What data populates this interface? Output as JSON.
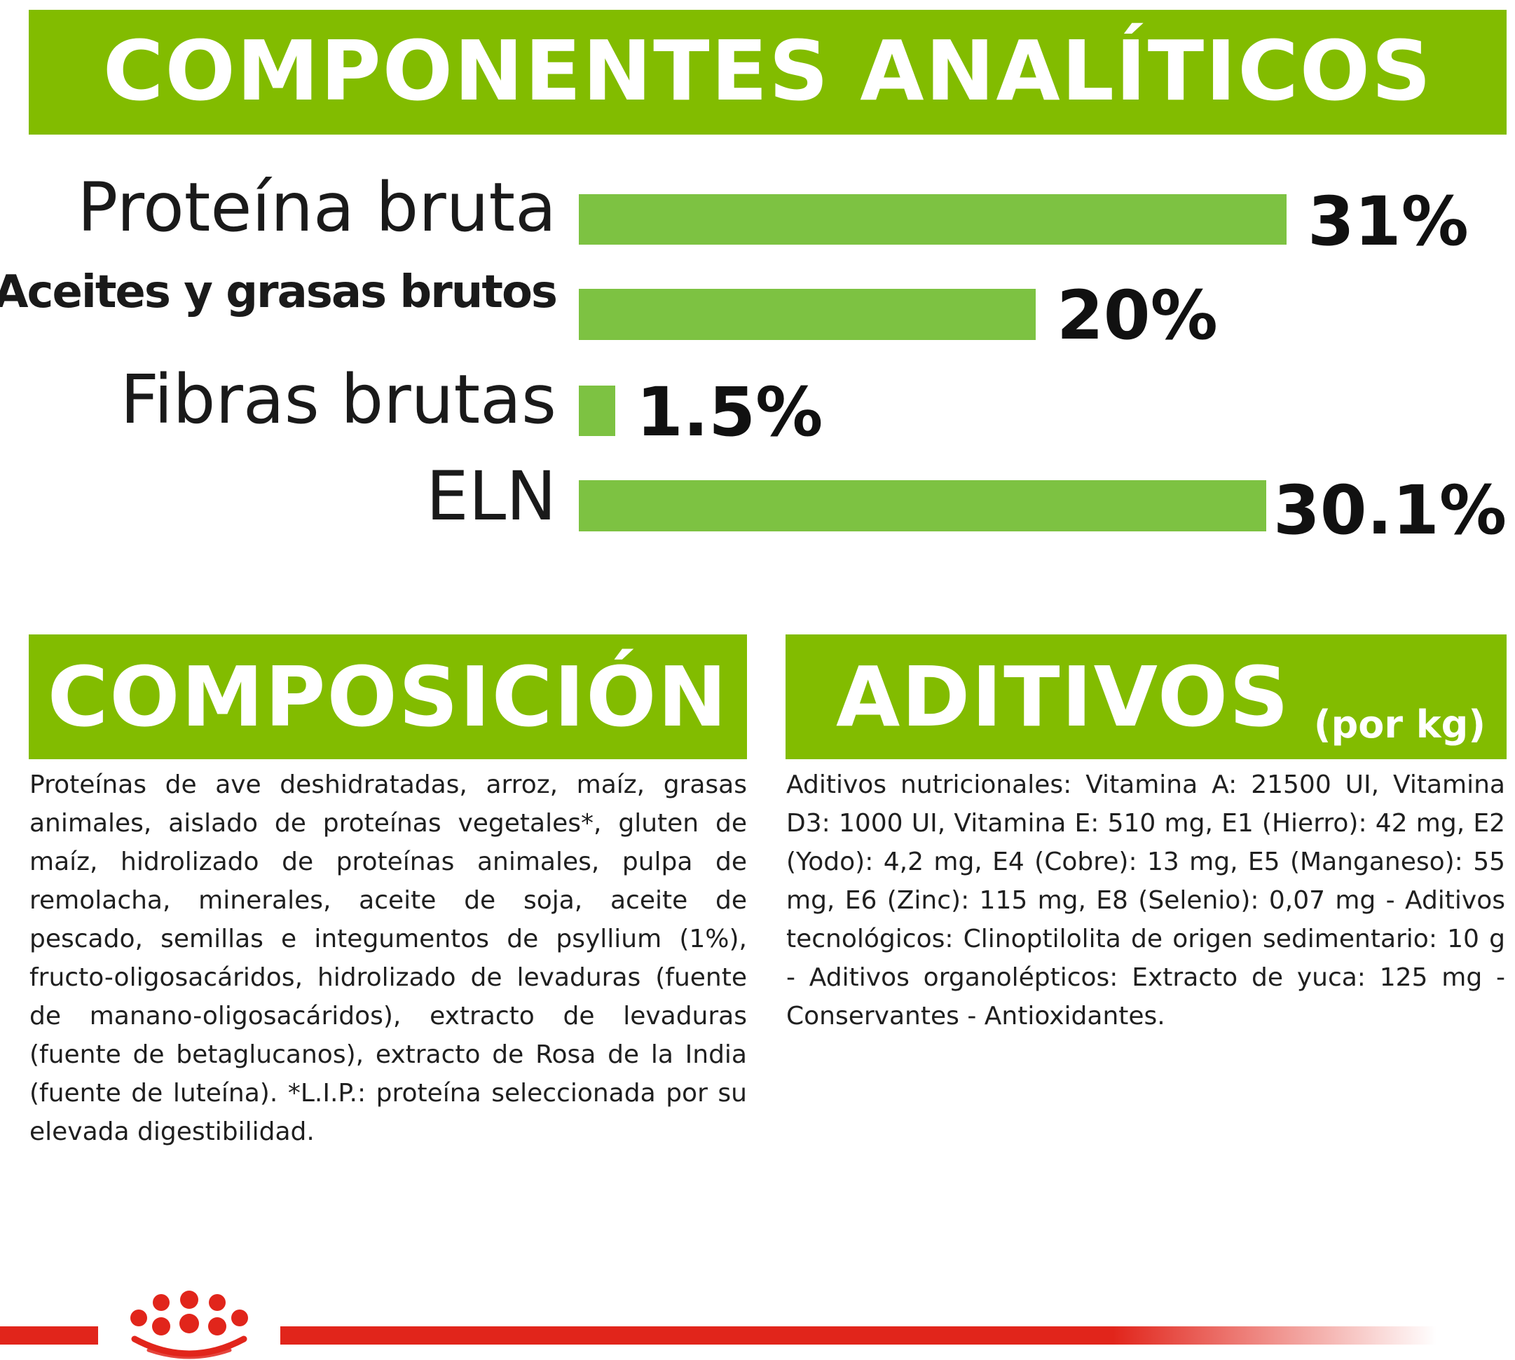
{
  "header": {
    "title": "COMPONENTES ANALÍTICOS"
  },
  "analytic": {
    "max_value": 31,
    "items": [
      {
        "label": "Proteína bruta",
        "value": 31,
        "value_label": "31%"
      },
      {
        "label": "Aceites y grasas brutos",
        "value": 20,
        "value_label": "20%"
      },
      {
        "label": "Fibras brutas",
        "value": 1.5,
        "value_label": "1.5%"
      },
      {
        "label": "ELN",
        "value": 30.1,
        "value_label": "30.1%"
      }
    ]
  },
  "composicion": {
    "title": "COMPOSICIÓN",
    "text": "Proteínas de ave deshidratadas, arroz, maíz, grasas animales, aislado de proteínas vegetales*, gluten de maíz, hidrolizado de proteínas animales, pulpa de remolacha, minerales, aceite de soja, aceite de pescado, semillas e integumentos de psyllium (1%), fructo-oligosacáridos, hidrolizado de levaduras (fuente de manano-oligosacáridos), extracto de levaduras (fuente de betaglucanos), extracto de Rosa de la India (fuente de luteína). *L.I.P.: proteína seleccionada por su elevada digestibilidad."
  },
  "aditivos": {
    "title": "ADITIVOS",
    "unit": "(por kg)",
    "text": "Aditivos nutricionales: Vitamina A: 21500 UI, Vitamina D3: 1000 UI, Vitamina E: 510 mg, E1 (Hierro): 42 mg, E2 (Yodo): 4,2 mg, E4 (Cobre): 13 mg, E5 (Manganeso): 55 mg, E6 (Zinc): 115 mg, E8 (Selenio): 0,07 mg - Aditivos tecnológicos: Clinoptilolita de origen sedimentario: 10 g - Aditivos organolépticos: Extracto de yuca: 125 mg - Conservantes - Antioxidantes."
  },
  "colors": {
    "banner": "#82bc00",
    "bar": "#7dc242",
    "brand_red": "#e1251b"
  },
  "footer": {
    "logo_icon": "royal-canin-crown-icon"
  }
}
